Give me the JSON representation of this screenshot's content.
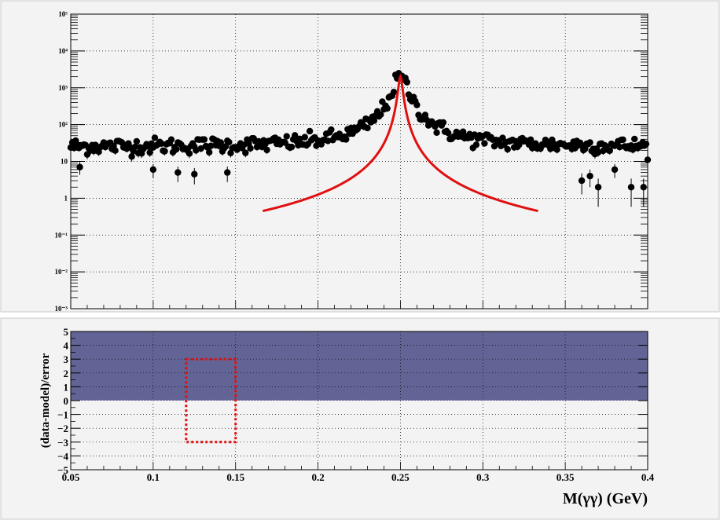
{
  "chart_data": [
    {
      "type": "scatter",
      "title": "",
      "xlabel": "",
      "ylabel": "",
      "log_y": true,
      "xlim": [
        0.05,
        0.4
      ],
      "ylim": [
        0.001,
        100000
      ],
      "grid": true,
      "y_tick_labels": [
        "10⁻³",
        "10⁻²",
        "10⁻¹",
        "1",
        "10",
        "10²",
        "10³",
        "10⁴",
        "10⁵"
      ],
      "y_tick_values": [
        0.001,
        0.01,
        0.1,
        1,
        10,
        100,
        1000,
        10000,
        100000
      ],
      "series": [
        {
          "kind": "data_points_with_errors",
          "color": "#000000",
          "background_level": 25,
          "peak_x": 0.25,
          "peak_y": 2000,
          "x_step": 0.001,
          "low_outliers": [
            {
              "x": 0.0555,
              "y": 7
            },
            {
              "x": 0.1,
              "y": 6
            },
            {
              "x": 0.115,
              "y": 5
            },
            {
              "x": 0.125,
              "y": 4.5
            },
            {
              "x": 0.145,
              "y": 5
            },
            {
              "x": 0.36,
              "y": 3
            },
            {
              "x": 0.365,
              "y": 4
            },
            {
              "x": 0.37,
              "y": 2
            },
            {
              "x": 0.38,
              "y": 6
            },
            {
              "x": 0.39,
              "y": 2
            },
            {
              "x": 0.3975,
              "y": 2
            }
          ]
        },
        {
          "kind": "model_curve",
          "color": "#e01010",
          "x_range": [
            0.1665,
            0.3335
          ],
          "peak_x": 0.25,
          "peak_y": 2000,
          "edge_y": 0.45
        }
      ]
    },
    {
      "type": "area",
      "title": "",
      "xlabel": "M(γγ) (GeV)",
      "ylabel": "(data-model)/error",
      "xlim": [
        0.05,
        0.4
      ],
      "ylim": [
        -5,
        5
      ],
      "grid": true,
      "x_tick_values": [
        0.05,
        0.1,
        0.15,
        0.2,
        0.25,
        0.3,
        0.35,
        0.4
      ],
      "x_tick_labels": [
        "0.05",
        "0.1",
        "0.15",
        "0.2",
        "0.25",
        "0.3",
        "0.35",
        "0.4"
      ],
      "y_tick_values": [
        5,
        4,
        3,
        2,
        1,
        0,
        -1,
        -2,
        -3,
        -4,
        -5
      ],
      "y_tick_labels": [
        "5",
        "4",
        "3",
        "2",
        "1",
        "0",
        "−1",
        "−2",
        "−3",
        "−4",
        "−5"
      ],
      "fill": {
        "from": 0,
        "to": 5,
        "color": "#636496"
      },
      "annotations": [
        {
          "kind": "dashed_box",
          "x0": 0.12,
          "x1": 0.15,
          "y0": -3,
          "y1": 3,
          "color": "#e01010"
        }
      ]
    }
  ]
}
